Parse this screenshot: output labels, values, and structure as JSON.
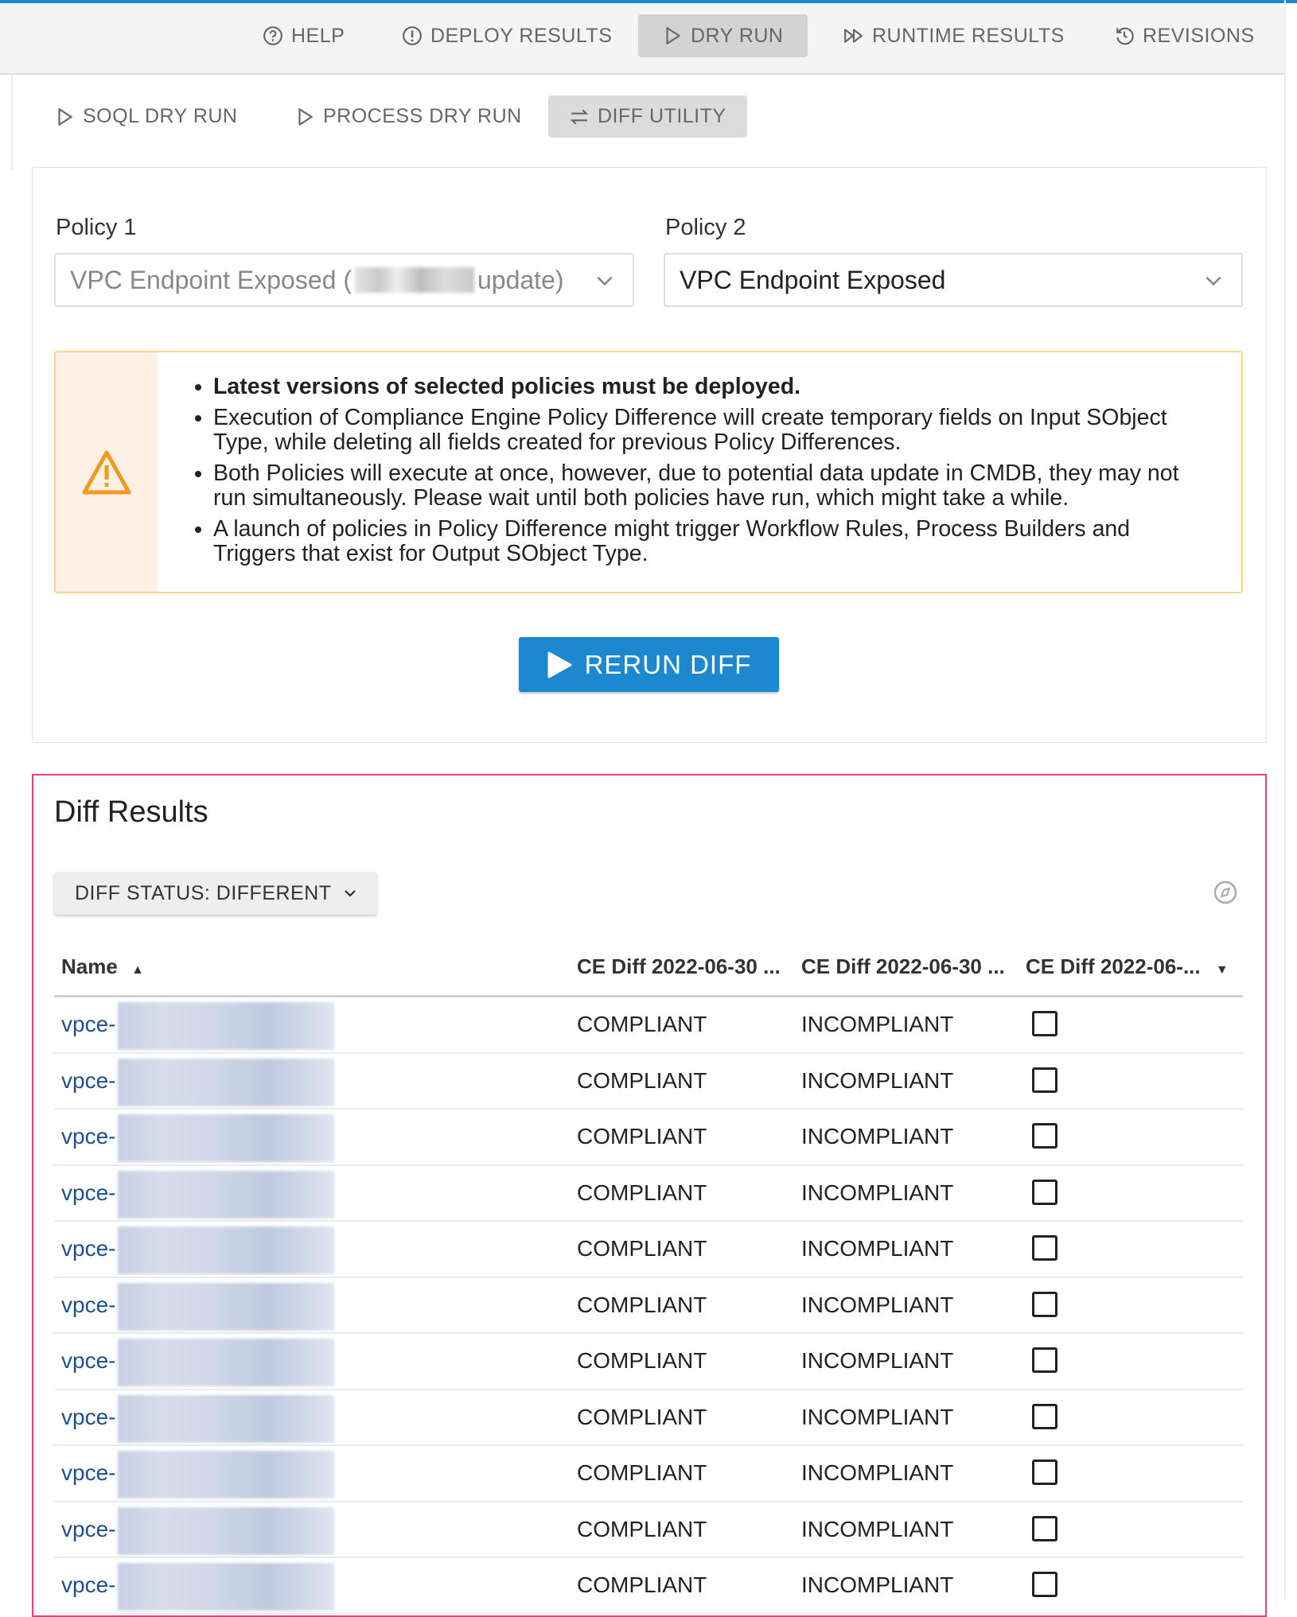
{
  "colors": {
    "accent": "#1b88d0",
    "warning_border": "#f6d48a",
    "warning_icon": "#f39a1e",
    "results_border": "#e8417a",
    "link": "#1f4f8f"
  },
  "top_nav": [
    {
      "label": "HELP",
      "icon": "help-circle-icon"
    },
    {
      "label": "DEPLOY RESULTS",
      "icon": "alert-circle-icon"
    },
    {
      "label": "DRY RUN",
      "icon": "play-icon",
      "active": true
    },
    {
      "label": "RUNTIME RESULTS",
      "icon": "fast-forward-icon"
    },
    {
      "label": "REVISIONS",
      "icon": "history-icon"
    }
  ],
  "sub_tabs": [
    {
      "label": "SOQL DRY RUN",
      "icon": "play-icon"
    },
    {
      "label": "PROCESS DRY RUN",
      "icon": "play-icon"
    },
    {
      "label": "DIFF UTILITY",
      "icon": "swap-icon",
      "active": true
    }
  ],
  "policy1": {
    "label": "Policy 1",
    "value_prefix": "VPC Endpoint Exposed (",
    "value_suffix": "update)"
  },
  "policy2": {
    "label": "Policy 2",
    "value": "VPC Endpoint Exposed"
  },
  "warning": {
    "items": [
      "Latest versions of selected policies must be deployed.",
      "Execution of Compliance Engine Policy Difference will create temporary fields on Input SObject Type, while deleting all fields created for previous Policy Differences.",
      "Both Policies will execute at once, however, due to potential data update in CMDB, they may not run simultaneously. Please wait until both policies have run, which might take a while.",
      "A launch of policies in Policy Difference might trigger Workflow Rules, Process Builders and Triggers that exist for Output SObject Type."
    ]
  },
  "rerun_label": "RERUN DIFF",
  "results": {
    "title": "Diff Results",
    "filter_label": "DIFF STATUS: DIFFERENT",
    "columns": [
      "Name",
      "CE Diff 2022-06-30 ...",
      "CE Diff 2022-06-30 ...",
      "CE Diff 2022-06-..."
    ],
    "rows": [
      {
        "name": "vpce-",
        "c1": "COMPLIANT",
        "c2": "INCOMPLIANT",
        "checked": false
      },
      {
        "name": "vpce-",
        "c1": "COMPLIANT",
        "c2": "INCOMPLIANT",
        "checked": false
      },
      {
        "name": "vpce-",
        "c1": "COMPLIANT",
        "c2": "INCOMPLIANT",
        "checked": false
      },
      {
        "name": "vpce-",
        "c1": "COMPLIANT",
        "c2": "INCOMPLIANT",
        "checked": false
      },
      {
        "name": "vpce-",
        "c1": "COMPLIANT",
        "c2": "INCOMPLIANT",
        "checked": false
      },
      {
        "name": "vpce-",
        "c1": "COMPLIANT",
        "c2": "INCOMPLIANT",
        "checked": false
      },
      {
        "name": "vpce-",
        "c1": "COMPLIANT",
        "c2": "INCOMPLIANT",
        "checked": false
      },
      {
        "name": "vpce-",
        "c1": "COMPLIANT",
        "c2": "INCOMPLIANT",
        "checked": false
      },
      {
        "name": "vpce-",
        "c1": "COMPLIANT",
        "c2": "INCOMPLIANT",
        "checked": false
      },
      {
        "name": "vpce-",
        "c1": "COMPLIANT",
        "c2": "INCOMPLIANT",
        "checked": false
      },
      {
        "name": "vpce-",
        "c1": "COMPLIANT",
        "c2": "INCOMPLIANT",
        "checked": false
      }
    ]
  }
}
